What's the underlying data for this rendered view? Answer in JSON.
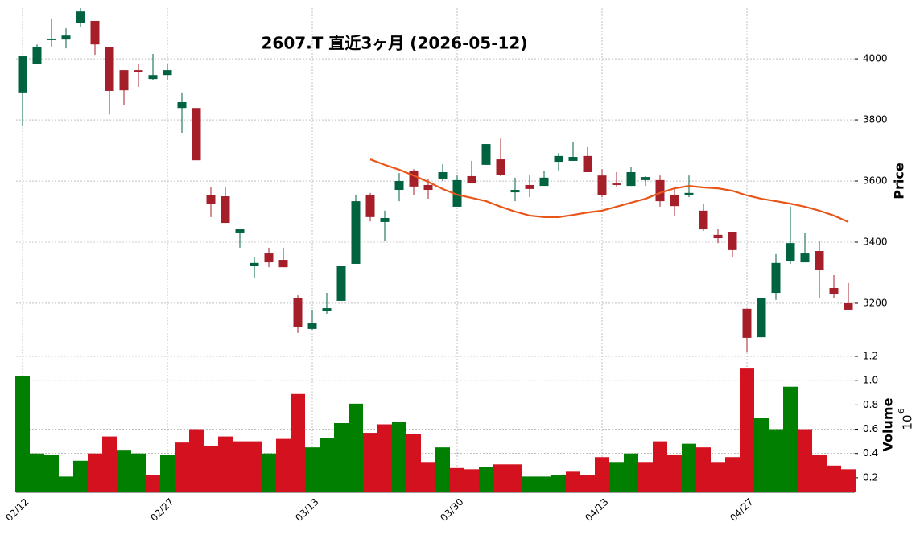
{
  "chart_data": [
    {
      "type": "candlestick",
      "title": "2607.T  直近3ヶ月  (2026-05-12)",
      "ylabel": "Price",
      "open": [
        3890,
        3984,
        4061,
        4063,
        4118,
        4124,
        4037,
        3963,
        3963,
        3934,
        3947,
        3839,
        3839,
        3555,
        3550,
        3429,
        3321,
        3363,
        3342,
        3218,
        3116,
        3174,
        3208,
        3329,
        3555,
        3466,
        3571,
        3634,
        3587,
        3608,
        3516,
        3616,
        3653,
        3671,
        3563,
        3587,
        3584,
        3663,
        3666,
        3682,
        3618,
        3592,
        3584,
        3603,
        3603,
        3555,
        3555,
        3503,
        3424,
        3434,
        3182,
        3089,
        3234,
        3339,
        3334,
        3371,
        3250,
        3200
      ],
      "high": [
        4008,
        4047,
        4132,
        4100,
        4171,
        4124,
        4037,
        3963,
        3982,
        4016,
        3982,
        3890,
        3839,
        3579,
        3579,
        3442,
        3350,
        3382,
        3382,
        3226,
        3179,
        3234,
        3321,
        3553,
        3561,
        3503,
        3626,
        3639,
        3608,
        3655,
        3618,
        3666,
        3721,
        3739,
        3611,
        3618,
        3634,
        3692,
        3729,
        3711,
        3639,
        3629,
        3645,
        3616,
        3618,
        3576,
        3618,
        3524,
        3442,
        3434,
        3182,
        3218,
        3361,
        3516,
        3429,
        3403,
        3292,
        3266
      ],
      "low": [
        3779,
        3984,
        4040,
        4034,
        4105,
        4013,
        3818,
        3850,
        3908,
        3929,
        3929,
        3758,
        3668,
        3482,
        3463,
        3382,
        3284,
        3318,
        3318,
        3103,
        3113,
        3166,
        3208,
        3329,
        3468,
        3403,
        3534,
        3555,
        3542,
        3600,
        3516,
        3592,
        3653,
        3616,
        3534,
        3547,
        3584,
        3632,
        3666,
        3629,
        3547,
        3582,
        3584,
        3584,
        3516,
        3487,
        3547,
        3437,
        3397,
        3350,
        3042,
        3089,
        3211,
        3329,
        3334,
        3218,
        3218,
        3179
      ],
      "close": [
        4008,
        4037,
        4066,
        4076,
        4155,
        4047,
        3895,
        3897,
        3958,
        3947,
        3963,
        3858,
        3668,
        3524,
        3463,
        3442,
        3332,
        3334,
        3318,
        3121,
        3134,
        3184,
        3321,
        3534,
        3482,
        3479,
        3600,
        3582,
        3571,
        3629,
        3603,
        3592,
        3721,
        3621,
        3571,
        3574,
        3611,
        3682,
        3679,
        3629,
        3555,
        3587,
        3629,
        3613,
        3534,
        3518,
        3561,
        3442,
        3413,
        3374,
        3087,
        3218,
        3332,
        3397,
        3363,
        3308,
        3229,
        3179
      ],
      "up_color": "#006340",
      "down_color": "#a51f2a",
      "line": {
        "color": "#e8561a",
        "values": [
          null,
          null,
          null,
          null,
          null,
          null,
          null,
          null,
          null,
          null,
          null,
          null,
          null,
          null,
          null,
          null,
          null,
          null,
          null,
          null,
          null,
          null,
          null,
          null,
          3671,
          3653,
          3637,
          3618,
          3597,
          3574,
          3555,
          3545,
          3534,
          3516,
          3500,
          3487,
          3482,
          3482,
          3489,
          3497,
          3503,
          3516,
          3529,
          3542,
          3561,
          3576,
          3584,
          3579,
          3576,
          3568,
          3553,
          3542,
          3534,
          3526,
          3516,
          3503,
          3487,
          3466
        ]
      },
      "ylim": [
        3042,
        4166
      ],
      "yticks": [
        3200,
        3400,
        3600,
        3800,
        4000
      ],
      "grid": true
    },
    {
      "type": "bar",
      "ylabel": "Volume",
      "scale_base": "10",
      "scale_exponent": "6",
      "categories": [
        "02/12",
        null,
        null,
        null,
        null,
        null,
        null,
        null,
        null,
        null,
        "02/27",
        null,
        null,
        null,
        null,
        null,
        null,
        null,
        null,
        null,
        "03/13",
        null,
        null,
        null,
        null,
        null,
        null,
        null,
        null,
        null,
        "03/30",
        null,
        null,
        null,
        null,
        null,
        null,
        null,
        null,
        null,
        "04/13",
        null,
        null,
        null,
        null,
        null,
        null,
        null,
        null,
        null,
        "04/27",
        null,
        null,
        null,
        null,
        null,
        null,
        null
      ],
      "values": [
        1.04,
        0.4,
        0.39,
        0.21,
        0.34,
        0.4,
        0.54,
        0.43,
        0.4,
        0.22,
        0.39,
        0.49,
        0.6,
        0.46,
        0.54,
        0.5,
        0.5,
        0.4,
        0.52,
        0.89,
        0.45,
        0.53,
        0.65,
        0.81,
        0.57,
        0.64,
        0.66,
        0.56,
        0.33,
        0.45,
        0.28,
        0.27,
        0.29,
        0.31,
        0.31,
        0.21,
        0.21,
        0.22,
        0.25,
        0.22,
        0.37,
        0.33,
        0.4,
        0.33,
        0.5,
        0.39,
        0.48,
        0.45,
        0.33,
        0.37,
        1.1,
        0.69,
        0.6,
        0.95,
        0.6,
        0.39,
        0.3,
        0.27
      ],
      "colors": [
        "#007f00",
        "#007f00",
        "#007f00",
        "#007f00",
        "#007f00",
        "#d4111f",
        "#d4111f",
        "#007f00",
        "#007f00",
        "#d4111f",
        "#007f00",
        "#d4111f",
        "#d4111f",
        "#d4111f",
        "#d4111f",
        "#d4111f",
        "#d4111f",
        "#007f00",
        "#d4111f",
        "#d4111f",
        "#007f00",
        "#007f00",
        "#007f00",
        "#007f00",
        "#d4111f",
        "#d4111f",
        "#007f00",
        "#d4111f",
        "#d4111f",
        "#007f00",
        "#d4111f",
        "#d4111f",
        "#007f00",
        "#d4111f",
        "#d4111f",
        "#007f00",
        "#007f00",
        "#007f00",
        "#d4111f",
        "#d4111f",
        "#d4111f",
        "#007f00",
        "#007f00",
        "#d4111f",
        "#d4111f",
        "#d4111f",
        "#007f00",
        "#d4111f",
        "#d4111f",
        "#d4111f",
        "#d4111f",
        "#007f00",
        "#007f00",
        "#007f00",
        "#d4111f",
        "#d4111f",
        "#d4111f",
        "#d4111f"
      ],
      "ylim": [
        0.08,
        1.2
      ],
      "yticks": [
        0.2,
        0.4,
        0.6,
        0.8,
        1.0,
        1.2
      ],
      "grid": true
    }
  ]
}
